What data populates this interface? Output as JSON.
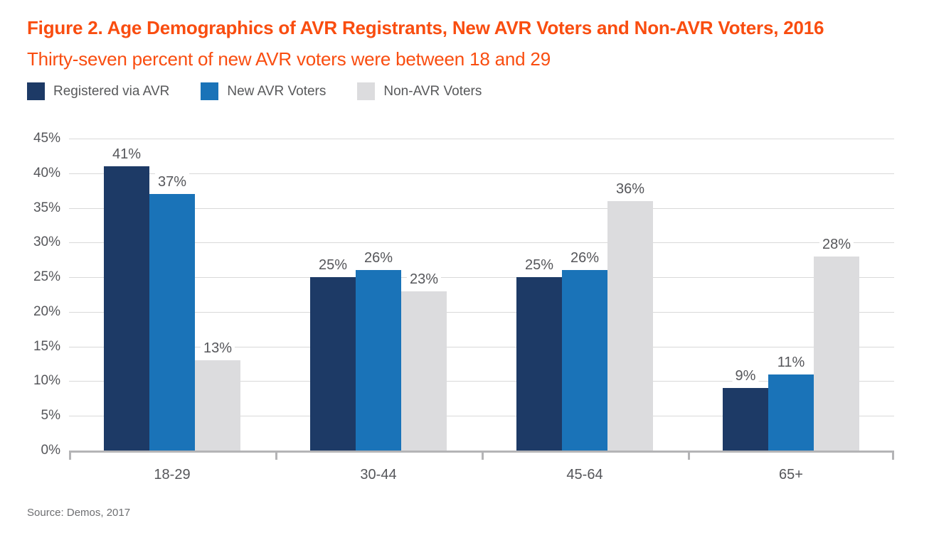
{
  "page": {
    "title": "Figure 2. Age Demographics of AVR Registrants, New AVR Voters and Non-AVR Voters, 2016",
    "subtitle": "Thirty-seven percent of new AVR voters were between 18 and 29",
    "source": "Source: Demos, 2017"
  },
  "colors": {
    "title_orange": "#f94d10",
    "subtitle_orange": "#f94d10",
    "navy": "#1d3a66",
    "blue": "#1a73b8",
    "light_gray": "#dcdcde",
    "gridline": "#d9d9d9",
    "axis": "#b4b4b6",
    "label_gray": "#55565a",
    "legend_text": "#58595b",
    "source_text": "#6d6e71"
  },
  "legend": {
    "items": [
      {
        "label": "Registered via AVR",
        "color": "#1d3a66"
      },
      {
        "label": "New AVR Voters",
        "color": "#1a73b8"
      },
      {
        "label": "Non-AVR Voters",
        "color": "#dcdcde"
      }
    ]
  },
  "chart_data": {
    "type": "bar",
    "title": "Figure 2. Age Demographics of AVR Registrants, New AVR Voters and Non-AVR Voters, 2016",
    "subtitle": "Thirty-seven percent of new AVR voters were between 18 and 29",
    "categories": [
      "18-29",
      "30-44",
      "45-64",
      "65+"
    ],
    "series": [
      {
        "name": "Registered via AVR",
        "color": "#1d3a66",
        "values": [
          41,
          25,
          25,
          9
        ]
      },
      {
        "name": "New AVR Voters",
        "color": "#1a73b8",
        "values": [
          37,
          26,
          26,
          11
        ]
      },
      {
        "name": "Non-AVR Voters",
        "color": "#dcdcde",
        "values": [
          13,
          23,
          36,
          28
        ]
      }
    ],
    "ylim": [
      0,
      45
    ],
    "ytick_step": 5,
    "ytick_format": "{v}%",
    "data_label_format": "{v}%",
    "grid": true,
    "legend_position": "top",
    "source": "Source: Demos, 2017"
  }
}
